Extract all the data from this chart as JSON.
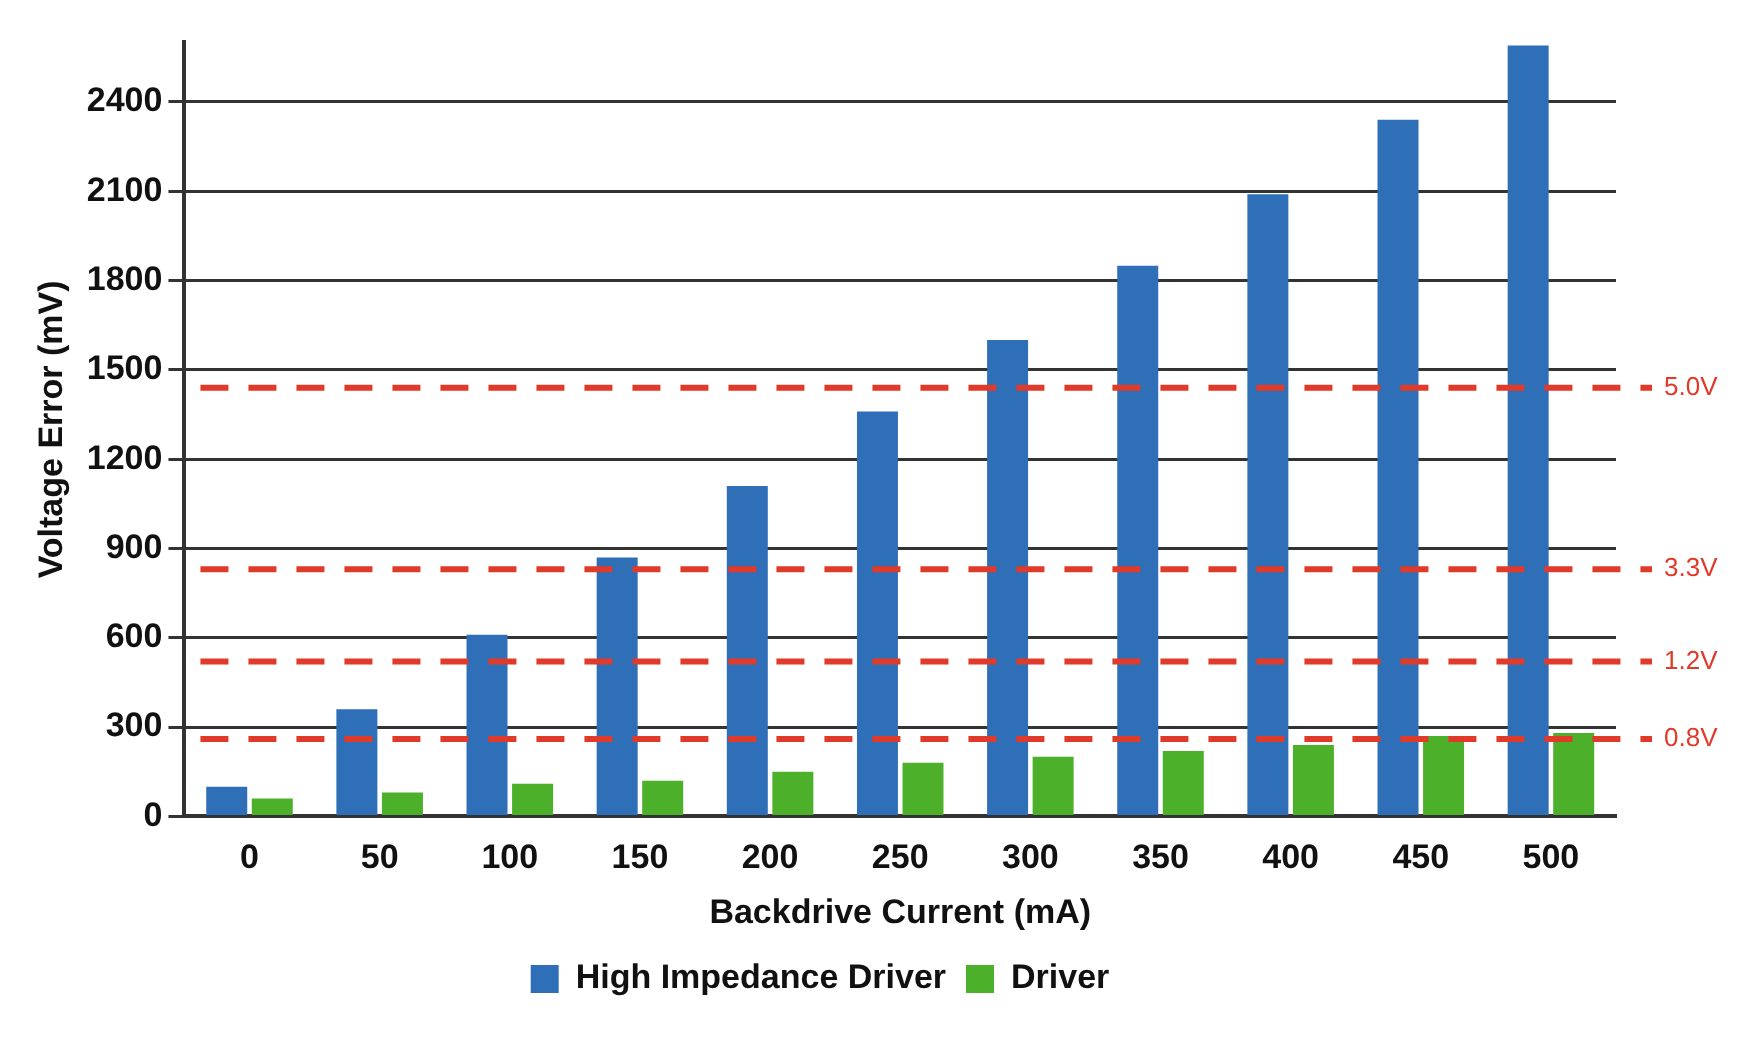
{
  "chart_data": {
    "type": "bar",
    "xlabel": "Backdrive Current (mA)",
    "ylabel": "Voltage Error (mV)",
    "categories": [
      "0",
      "50",
      "100",
      "150",
      "200",
      "250",
      "300",
      "350",
      "400",
      "450",
      "500"
    ],
    "series": [
      {
        "name": "High Impedance Driver",
        "color": "#2f6fb8",
        "values": [
          100,
          360,
          610,
          870,
          1110,
          1360,
          1600,
          1850,
          2090,
          2340,
          2590
        ]
      },
      {
        "name": "Driver",
        "color": "#4cb02a",
        "values": [
          60,
          80,
          110,
          120,
          150,
          180,
          200,
          220,
          240,
          270,
          280
        ]
      }
    ],
    "ylim": [
      0,
      2600
    ],
    "yticks": [
      0,
      300,
      600,
      900,
      1200,
      1500,
      1800,
      2100,
      2400
    ],
    "grid": "y",
    "legend": "bottom",
    "ref_lines": [
      {
        "axis": "y",
        "value": 1440,
        "label": "5.0V",
        "color": "#e03a2a",
        "line_style": "dashed"
      },
      {
        "axis": "y",
        "value": 830,
        "label": "3.3V",
        "color": "#e03a2a",
        "line_style": "dashed"
      },
      {
        "axis": "y",
        "value": 520,
        "label": "1.2V",
        "color": "#e03a2a",
        "line_style": "dashed"
      },
      {
        "axis": "y",
        "value": 260,
        "label": "0.8V",
        "color": "#e03a2a",
        "line_style": "dashed"
      }
    ]
  }
}
